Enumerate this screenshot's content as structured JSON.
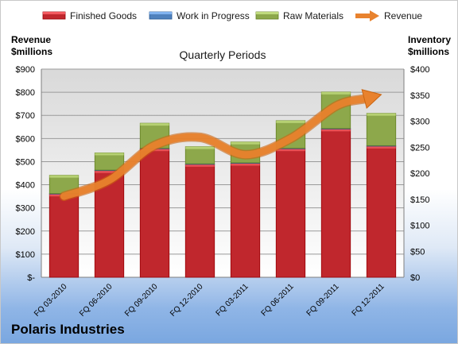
{
  "company": "Polaris Industries",
  "chart_data": {
    "type": "bar",
    "subtitle": "Quarterly Periods",
    "left_axis_label": [
      "Revenue",
      "$millions"
    ],
    "right_axis_label": [
      "Inventory",
      "$millions"
    ],
    "categories": [
      "FQ 03-2010",
      "FQ 06-2010",
      "FQ 09-2010",
      "FQ 12-2010",
      "FQ 03-2011",
      "FQ 06-2011",
      "FQ 09-2011",
      "FQ 12-2011"
    ],
    "left_ylim": [
      0,
      900
    ],
    "left_ticks": [
      "$-",
      "$100",
      "$200",
      "$300",
      "$400",
      "$500",
      "$600",
      "$700",
      "$800",
      "$900"
    ],
    "right_ylim": [
      0,
      400
    ],
    "right_ticks": [
      "$0",
      "$50",
      "$100",
      "$150",
      "$200",
      "$250",
      "$300",
      "$350",
      "$400"
    ],
    "legend_position": "top",
    "series": [
      {
        "name": "Finished Goods",
        "axis": "right",
        "stack": true,
        "color": "#c0272d",
        "values": [
          160,
          205,
          247,
          217,
          219,
          247,
          285,
          252
        ]
      },
      {
        "name": "Work in Progress",
        "axis": "right",
        "stack": true,
        "color": "#4f81bd",
        "values": [
          1,
          1,
          1,
          1,
          1,
          1,
          1,
          1
        ]
      },
      {
        "name": "Raw Materials",
        "axis": "right",
        "stack": true,
        "color": "#8da84b",
        "values": [
          35,
          33,
          48,
          33,
          40,
          53,
          70,
          62
        ]
      },
      {
        "name": "Revenue",
        "axis": "left",
        "type": "line",
        "color": "#e8822e",
        "values": [
          350,
          420,
          570,
          605,
          530,
          600,
          740,
          790
        ]
      }
    ]
  }
}
